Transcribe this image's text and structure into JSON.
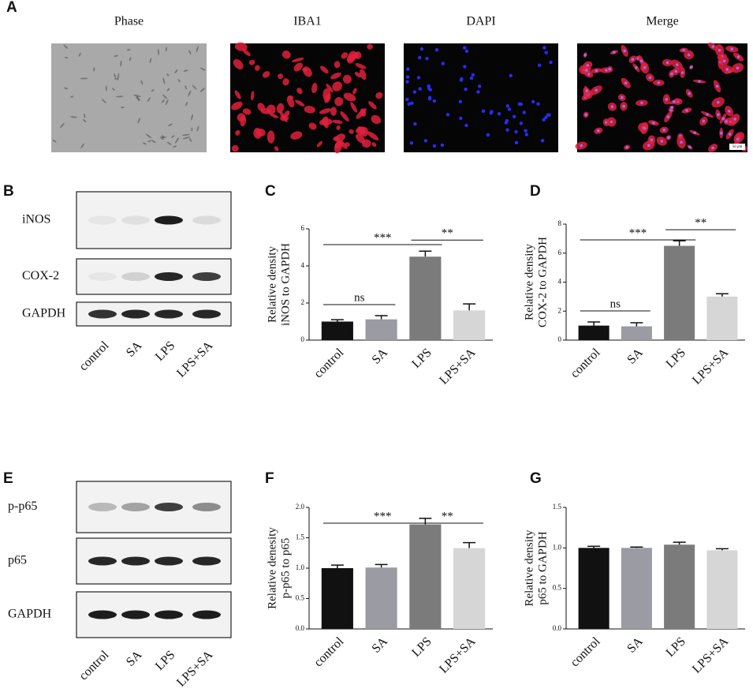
{
  "panels": [
    "A",
    "B",
    "C",
    "D",
    "E",
    "F",
    "G"
  ],
  "images": {
    "labels": [
      "Phase",
      "IBA1",
      "DAPI",
      "Merge"
    ],
    "scale_bar": "50 μm"
  },
  "blots": [
    {
      "rows": [
        "iNOS",
        "COX-2",
        "GAPDH"
      ],
      "lanes": [
        "control",
        "SA",
        "LPS",
        "LPS+SA"
      ]
    },
    {
      "rows": [
        "p-p65",
        "p65",
        "GAPDH"
      ],
      "lanes": [
        "control",
        "SA",
        "LPS",
        "LPS+SA"
      ]
    }
  ],
  "chart_data": [
    {
      "type": "bar",
      "ylabel": [
        "Relative density",
        "iNOS  to GAPDH"
      ],
      "categories": [
        "control",
        "SA",
        "LPS",
        "LPS+SA"
      ],
      "values": [
        1.0,
        1.12,
        4.5,
        1.6
      ],
      "errors": [
        0.1,
        0.2,
        0.3,
        0.35
      ],
      "colors": [
        "#111111",
        "#9b9ba3",
        "#7b7b7b",
        "#d6d6d6"
      ],
      "ylim": [
        0,
        6
      ],
      "yticks": [
        0,
        2,
        4,
        6
      ],
      "annotations": [
        {
          "label": "ns",
          "between": [
            0,
            1
          ]
        },
        {
          "label": "***",
          "between": [
            0,
            2
          ]
        },
        {
          "label": "**",
          "between": [
            2,
            3
          ]
        }
      ]
    },
    {
      "type": "bar",
      "ylabel": [
        "Relative density",
        "COX-2  to GAPDH"
      ],
      "categories": [
        "control",
        "SA",
        "LPS",
        "LPS+SA"
      ],
      "values": [
        1.0,
        0.95,
        6.5,
        3.0
      ],
      "errors": [
        0.25,
        0.25,
        0.35,
        0.2
      ],
      "colors": [
        "#111111",
        "#9b9ba3",
        "#7b7b7b",
        "#d6d6d6"
      ],
      "ylim": [
        0,
        8
      ],
      "yticks": [
        0,
        2,
        4,
        6,
        8
      ],
      "annotations": [
        {
          "label": "ns",
          "between": [
            0,
            1
          ]
        },
        {
          "label": "***",
          "between": [
            0,
            2
          ]
        },
        {
          "label": "**",
          "between": [
            2,
            3
          ]
        }
      ]
    },
    {
      "type": "bar",
      "ylabel": [
        "Relative denesity",
        "p-p65 to p65"
      ],
      "categories": [
        "control",
        "SA",
        "LPS",
        "LPS+SA"
      ],
      "values": [
        1.0,
        1.01,
        1.72,
        1.33
      ],
      "errors": [
        0.05,
        0.05,
        0.1,
        0.09
      ],
      "colors": [
        "#111111",
        "#9b9ba3",
        "#7b7b7b",
        "#d6d6d6"
      ],
      "ylim": [
        0,
        2
      ],
      "yticks": [
        {
          "value": 0,
          "label": "0.0"
        },
        {
          "value": 0.5,
          "label": "0.5"
        },
        {
          "value": 1,
          "label": "1.0"
        },
        {
          "value": 1.5,
          "label": "1.5"
        },
        {
          "value": 2,
          "label": "2.0"
        }
      ],
      "annotations": [
        {
          "label": "***",
          "between": [
            0,
            2
          ]
        },
        {
          "label": "**",
          "between": [
            2,
            3
          ]
        }
      ]
    },
    {
      "type": "bar",
      "ylabel": [
        "Relative density",
        "p65 to GAPDH"
      ],
      "categories": [
        "control",
        "SA",
        "LPS",
        "LPS+SA"
      ],
      "values": [
        1.0,
        1.0,
        1.04,
        0.97
      ],
      "errors": [
        0.02,
        0.01,
        0.03,
        0.02
      ],
      "colors": [
        "#111111",
        "#9b9ba3",
        "#7b7b7b",
        "#d6d6d6"
      ],
      "ylim": [
        0,
        1.5
      ],
      "yticks": [
        {
          "value": 0,
          "label": "0.0"
        },
        {
          "value": 0.5,
          "label": "0.5"
        },
        {
          "value": 1,
          "label": "1.0"
        },
        {
          "value": 1.5,
          "label": "1.5"
        }
      ],
      "annotations": []
    }
  ]
}
